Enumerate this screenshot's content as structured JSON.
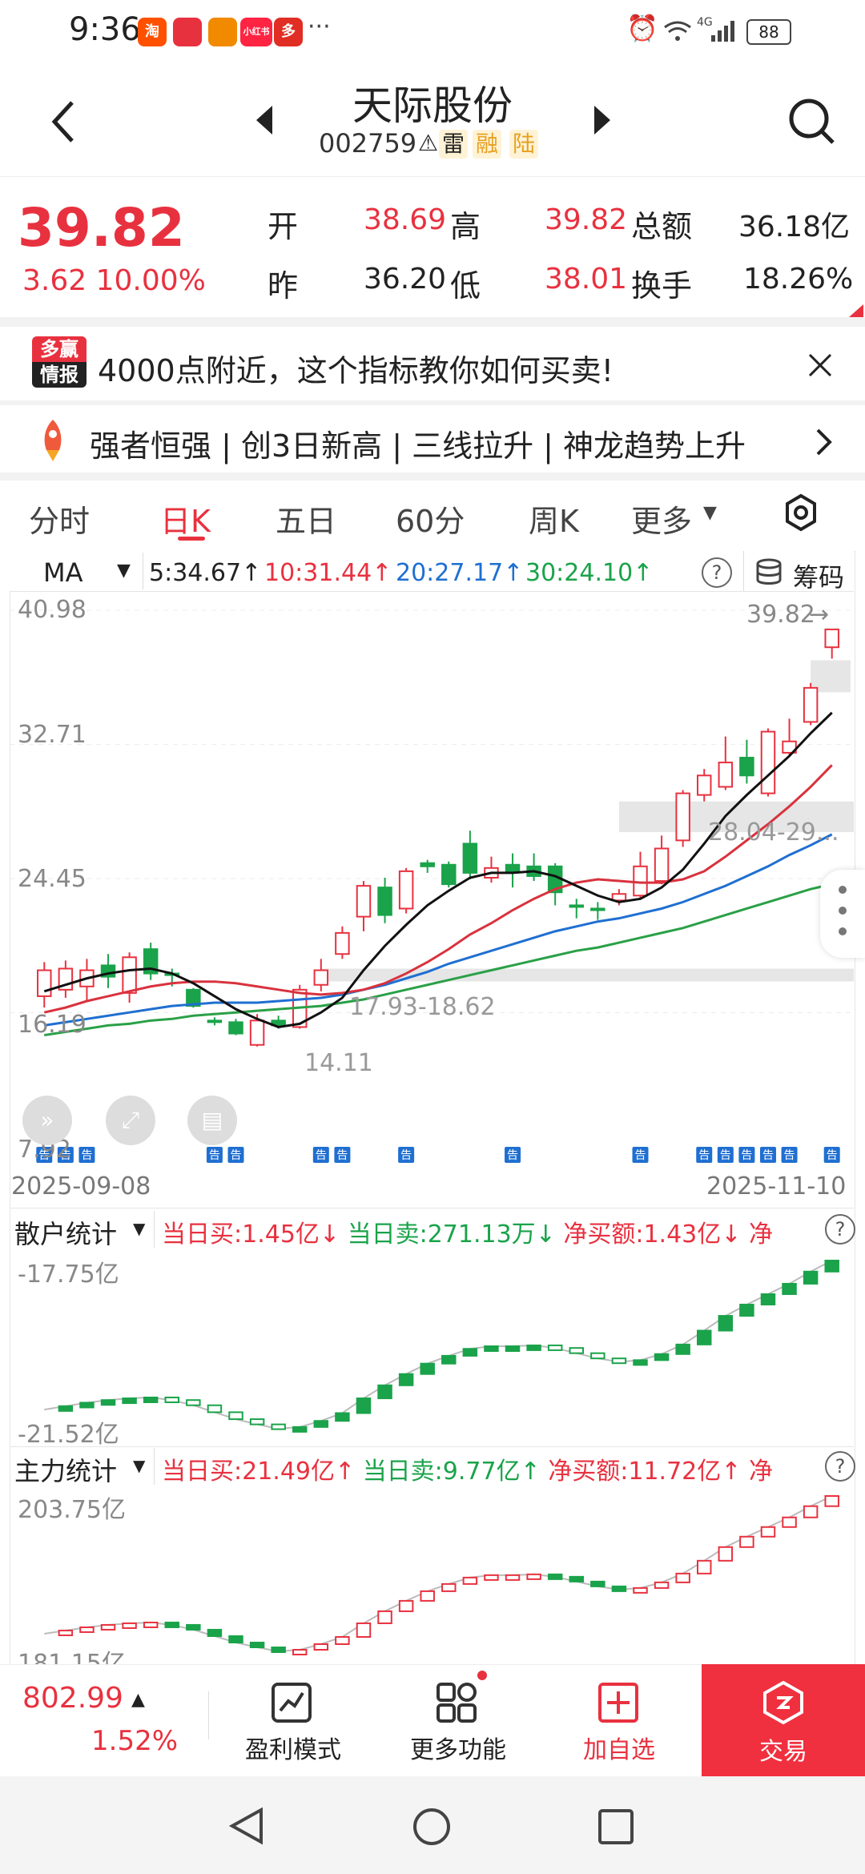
{
  "status": {
    "time": "9:36",
    "battery": "88",
    "signal": "4G",
    "app_icons": [
      {
        "name": "taobao-icon",
        "label": "淘",
        "color": "#ff5000"
      },
      {
        "name": "app2-icon",
        "label": "",
        "color": "#e8313f"
      },
      {
        "name": "app3-icon",
        "label": "",
        "color": "#f28a00"
      },
      {
        "name": "xiaohongshu-icon",
        "label": "小红书",
        "color": "#ff2442"
      },
      {
        "name": "pinduoduo-icon",
        "label": "多",
        "color": "#e02e24"
      }
    ]
  },
  "header": {
    "name": "天际股份",
    "code": "002759",
    "tags": [
      "雷",
      "融",
      "陆"
    ]
  },
  "quote": {
    "price": "39.82",
    "change": "3.62 10.00%",
    "open_label": "开",
    "open": "38.69",
    "high_label": "高",
    "high": "39.82",
    "amount_label": "总额",
    "amount": "36.18亿",
    "prev_label": "昨",
    "prev": "36.20",
    "low_label": "低",
    "low": "38.01",
    "turnover_label": "换手",
    "turnover": "18.26%"
  },
  "banner": {
    "logo_top": "多赢",
    "logo_bottom": "情报",
    "text": "4000点附近，这个指标教你如何买卖!"
  },
  "ticker": {
    "text": "强者恒强 | 创3日新高 | 三线拉升 | 神龙趋势上升"
  },
  "tabs": [
    "分时",
    "日K",
    "五日",
    "60分",
    "周K",
    "更多"
  ],
  "active_tab": "日K",
  "ma_bar": {
    "indicator": "MA",
    "ma5": "5:34.67↑",
    "ma10": "10:31.44↑",
    "ma20": "20:27.17↑",
    "ma30": "30:24.10↑",
    "chip_label": "筹码"
  },
  "chart_labels": {
    "y_top": "40.98",
    "y2": "32.71",
    "y3": "24.45",
    "y4": "16.19",
    "y_bottom": "7.92",
    "last_price": "39.82",
    "band_upper": "28.04-29...",
    "band_lower": "17.93-18.62",
    "low_mark": "14.11",
    "date_start": "2025-09-08",
    "date_end": "2025-11-10",
    "announce": "告"
  },
  "chart_data": {
    "type": "candlestick",
    "ylim": [
      7.92,
      40.98
    ],
    "candles": [
      {
        "o": 17.2,
        "c": 18.8,
        "h": 19.3,
        "l": 16.5
      },
      {
        "o": 17.6,
        "c": 18.9,
        "h": 19.4,
        "l": 17.1
      },
      {
        "o": 17.8,
        "c": 18.8,
        "h": 19.5,
        "l": 16.9
      },
      {
        "o": 19.1,
        "c": 18.4,
        "h": 19.8,
        "l": 17.7
      },
      {
        "o": 17.4,
        "c": 19.6,
        "h": 19.9,
        "l": 16.8
      },
      {
        "o": 20.1,
        "c": 18.6,
        "h": 20.5,
        "l": 18.2
      },
      {
        "o": 18.6,
        "c": 18.5,
        "h": 18.9,
        "l": 17.8
      },
      {
        "o": 17.6,
        "c": 16.6,
        "h": 17.7,
        "l": 16.5
      },
      {
        "o": 15.7,
        "c": 15.6,
        "h": 15.9,
        "l": 15.4
      },
      {
        "o": 15.6,
        "c": 14.9,
        "h": 15.8,
        "l": 14.8
      },
      {
        "o": 14.2,
        "c": 15.7,
        "h": 16.1,
        "l": 14.1
      },
      {
        "o": 15.7,
        "c": 15.4,
        "h": 16.0,
        "l": 15.2
      },
      {
        "o": 15.3,
        "c": 17.6,
        "h": 17.9,
        "l": 15.2
      },
      {
        "o": 17.9,
        "c": 18.8,
        "h": 19.5,
        "l": 17.5
      },
      {
        "o": 19.8,
        "c": 21.1,
        "h": 21.5,
        "l": 19.5
      },
      {
        "o": 22.1,
        "c": 24.0,
        "h": 24.3,
        "l": 21.2
      },
      {
        "o": 23.9,
        "c": 22.2,
        "h": 24.5,
        "l": 21.7
      },
      {
        "o": 22.6,
        "c": 24.9,
        "h": 25.1,
        "l": 22.3
      },
      {
        "o": 25.4,
        "c": 25.2,
        "h": 25.6,
        "l": 24.8
      },
      {
        "o": 25.3,
        "c": 24.1,
        "h": 25.5,
        "l": 23.9
      },
      {
        "o": 26.6,
        "c": 24.8,
        "h": 27.4,
        "l": 24.4
      },
      {
        "o": 24.5,
        "c": 25.1,
        "h": 25.8,
        "l": 24.2
      },
      {
        "o": 25.3,
        "c": 24.9,
        "h": 26.0,
        "l": 23.9
      },
      {
        "o": 25.2,
        "c": 24.6,
        "h": 26.0,
        "l": 24.3
      },
      {
        "o": 25.2,
        "c": 23.6,
        "h": 25.4,
        "l": 22.8
      },
      {
        "o": 22.8,
        "c": 22.7,
        "h": 23.2,
        "l": 22.0
      },
      {
        "o": 22.6,
        "c": 22.5,
        "h": 23.0,
        "l": 21.9
      },
      {
        "o": 23.1,
        "c": 23.5,
        "h": 23.8,
        "l": 22.8
      },
      {
        "o": 23.4,
        "c": 25.2,
        "h": 26.1,
        "l": 23.2
      },
      {
        "o": 24.3,
        "c": 26.3,
        "h": 27.1,
        "l": 24.1
      },
      {
        "o": 26.8,
        "c": 29.7,
        "h": 29.9,
        "l": 26.4
      },
      {
        "o": 29.6,
        "c": 30.8,
        "h": 31.2,
        "l": 29.2
      },
      {
        "o": 30.1,
        "c": 31.6,
        "h": 33.2,
        "l": 29.9
      },
      {
        "o": 31.9,
        "c": 30.8,
        "h": 33.0,
        "l": 30.3
      },
      {
        "o": 29.7,
        "c": 33.5,
        "h": 33.7,
        "l": 29.5
      },
      {
        "o": 32.2,
        "c": 32.9,
        "h": 34.3,
        "l": 32.0
      },
      {
        "o": 34.1,
        "c": 36.2,
        "h": 36.5,
        "l": 33.9
      },
      {
        "o": 38.7,
        "c": 39.8,
        "h": 39.8,
        "l": 38.0
      }
    ],
    "ma5": [
      17.5,
      17.9,
      18.3,
      18.6,
      18.8,
      18.9,
      18.6,
      18.0,
      17.2,
      16.4,
      15.8,
      15.3,
      15.5,
      16.2,
      17.1,
      18.8,
      20.3,
      21.6,
      22.8,
      23.7,
      24.5,
      24.8,
      24.8,
      24.9,
      24.6,
      24.0,
      23.4,
      23.0,
      23.2,
      23.9,
      25.0,
      26.6,
      28.3,
      29.6,
      30.8,
      32.0,
      33.4,
      34.67
    ],
    "ma10": [
      16.2,
      16.5,
      16.9,
      17.2,
      17.5,
      17.8,
      18.0,
      18.1,
      18.1,
      18.0,
      17.8,
      17.6,
      17.4,
      17.3,
      17.4,
      17.6,
      18.0,
      18.6,
      19.3,
      20.1,
      21.0,
      21.7,
      22.5,
      23.2,
      23.8,
      24.2,
      24.4,
      24.3,
      24.2,
      24.2,
      24.4,
      24.9,
      25.8,
      26.8,
      27.8,
      28.9,
      30.1,
      31.44
    ],
    "ma20": [
      15.4,
      15.6,
      15.8,
      16.0,
      16.2,
      16.4,
      16.6,
      16.7,
      16.8,
      16.8,
      16.8,
      16.9,
      17.0,
      17.1,
      17.3,
      17.6,
      17.9,
      18.3,
      18.7,
      19.2,
      19.6,
      20.0,
      20.4,
      20.8,
      21.2,
      21.5,
      21.8,
      22.0,
      22.3,
      22.6,
      23.0,
      23.5,
      24.0,
      24.6,
      25.2,
      25.9,
      26.5,
      27.17
    ],
    "ma30": [
      14.8,
      15.0,
      15.2,
      15.4,
      15.5,
      15.7,
      15.8,
      16.0,
      16.1,
      16.2,
      16.3,
      16.4,
      16.5,
      16.6,
      16.8,
      17.0,
      17.3,
      17.6,
      17.9,
      18.2,
      18.5,
      18.8,
      19.1,
      19.4,
      19.7,
      20.0,
      20.2,
      20.5,
      20.8,
      21.1,
      21.4,
      21.8,
      22.2,
      22.6,
      23.0,
      23.4,
      23.8,
      24.1
    ]
  },
  "retail": {
    "title": "散户统计",
    "buy": "当日买:1.45亿↓",
    "sell": "当日卖:271.13万↓",
    "net": "净买额:1.43亿↓",
    "net_more": "净",
    "y_top": "-17.75亿",
    "y_bottom": "-21.52亿"
  },
  "main": {
    "title": "主力统计",
    "buy": "当日买:21.49亿↑",
    "sell": "当日卖:9.77亿↑",
    "net": "净买额:11.72亿↑",
    "net_more": "净",
    "y_top": "203.75亿",
    "y_bottom": "181.15亿"
  },
  "bottom_bar": {
    "index_value": "802.99",
    "index_change": "1.52%",
    "btn1": "盈利模式",
    "btn2": "更多功能",
    "btn3": "加自选",
    "btn4": "交易"
  },
  "colors": {
    "up": "#e8313f",
    "down": "#1aa34a",
    "ma5": "#111111",
    "ma10": "#d9323e",
    "ma20": "#1f6fd1",
    "ma30": "#2aa047"
  }
}
